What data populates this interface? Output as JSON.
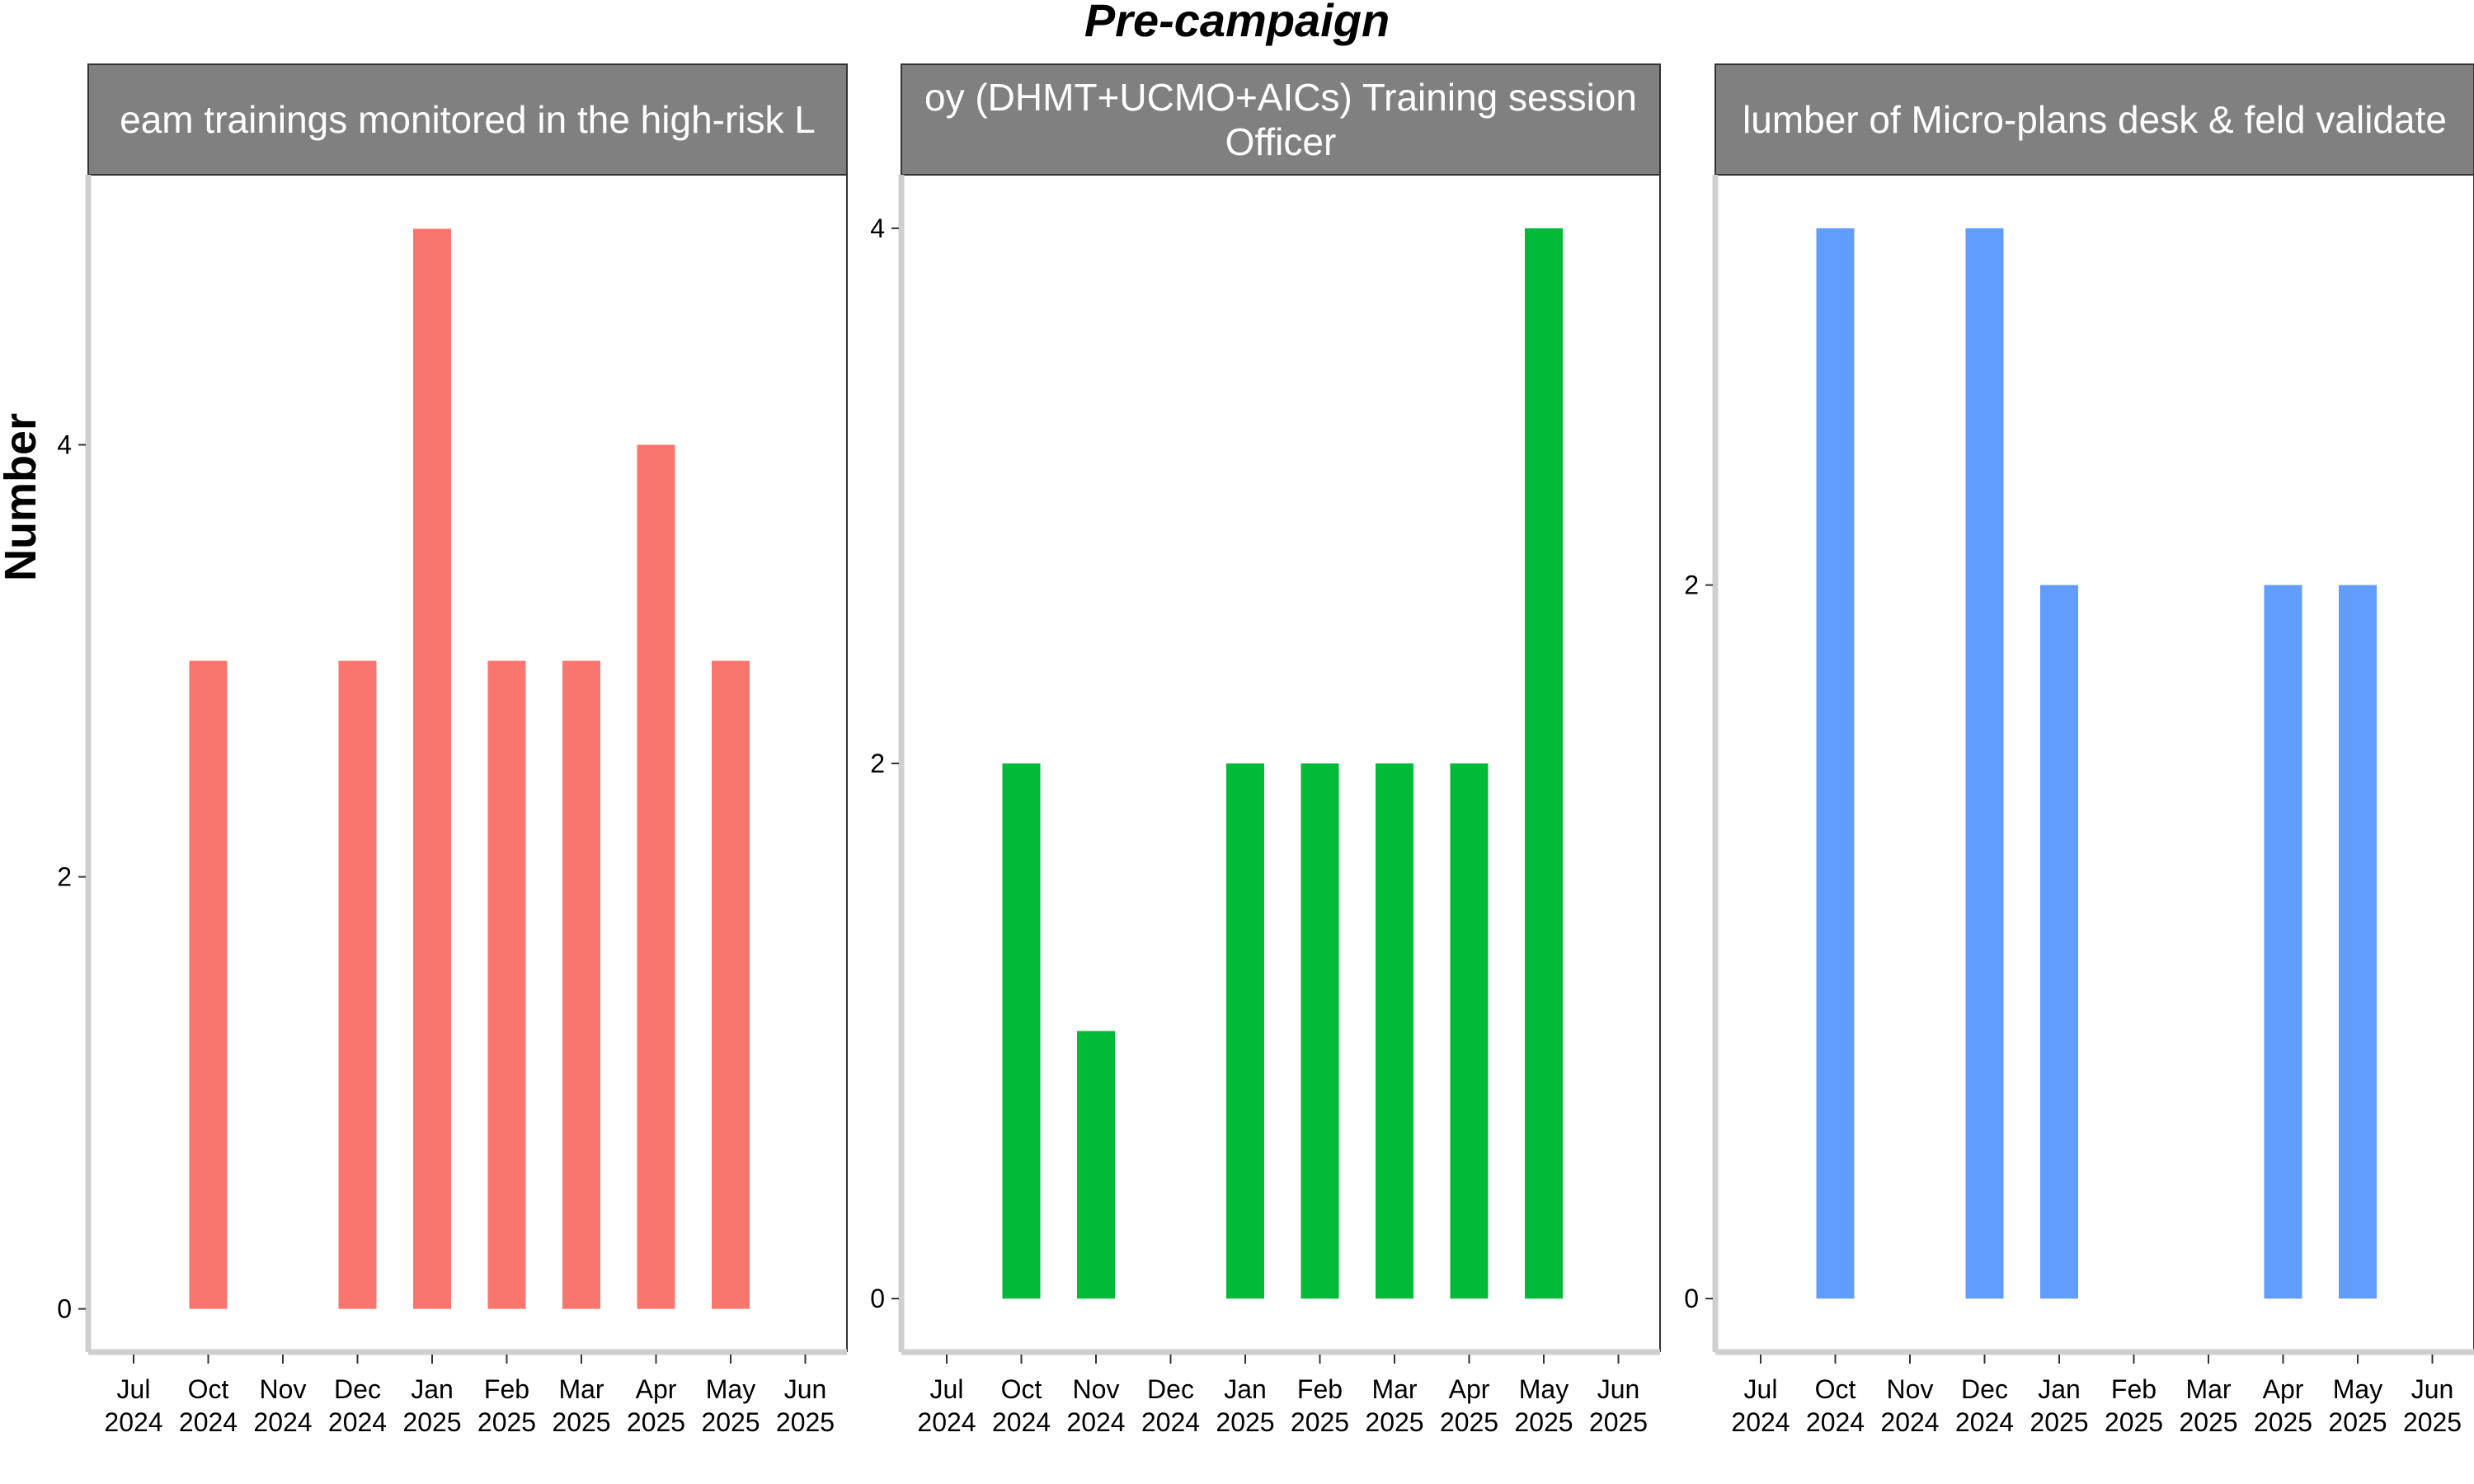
{
  "title": "Pre-campaign",
  "ylabel": "Number",
  "chart_data": [
    {
      "type": "bar",
      "strip_lines": [
        "eam trainings monitored in the high-risk L"
      ],
      "color": "#F8766D",
      "categories": [
        "Jul 2024",
        "Oct 2024",
        "Nov 2024",
        "Dec 2024",
        "Jan 2025",
        "Feb 2025",
        "Mar 2025",
        "Apr 2025",
        "May 2025",
        "Jun 2025"
      ],
      "values": [
        null,
        3,
        null,
        3,
        5,
        3,
        3,
        4,
        3,
        null
      ],
      "yticks": [
        0,
        2,
        4
      ],
      "ylim": [
        -0.2,
        5.25
      ]
    },
    {
      "type": "bar",
      "strip_lines": [
        "oy (DHMT+UCMO+AICs) Training session",
        "Officer"
      ],
      "color": "#00BA38",
      "categories": [
        "Jul 2024",
        "Oct 2024",
        "Nov 2024",
        "Dec 2024",
        "Jan 2025",
        "Feb 2025",
        "Mar 2025",
        "Apr 2025",
        "May 2025",
        "Jun 2025"
      ],
      "values": [
        null,
        2,
        1,
        null,
        2,
        2,
        2,
        2,
        4,
        null
      ],
      "yticks": [
        0,
        2,
        4
      ],
      "ylim": [
        -0.2,
        4.2
      ]
    },
    {
      "type": "bar",
      "strip_lines": [
        "lumber of Micro-plans desk & feld validate"
      ],
      "color": "#619CFF",
      "categories": [
        "Jul 2024",
        "Oct 2024",
        "Nov 2024",
        "Dec 2024",
        "Jan 2025",
        "Feb 2025",
        "Mar 2025",
        "Apr 2025",
        "May 2025",
        "Jun 2025"
      ],
      "values": [
        null,
        3,
        null,
        3,
        2,
        null,
        null,
        2,
        2,
        null
      ],
      "yticks": [
        0,
        2
      ],
      "ylim": [
        -0.15,
        3.15
      ]
    }
  ]
}
